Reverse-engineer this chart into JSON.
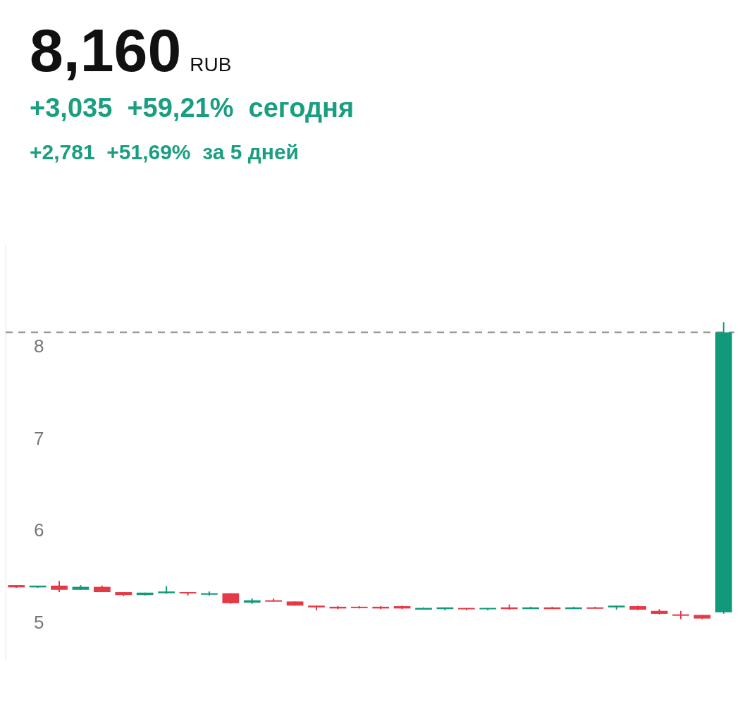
{
  "chart_data": {
    "type": "candlestick",
    "title": "8,160",
    "subtitle": "RUB",
    "annotations": [
      "+3,035  +59,21%  сегодня",
      "+2,781  +51,69%  за 5 дней"
    ],
    "categories": [
      null,
      null,
      null,
      null,
      null,
      null,
      null,
      null,
      null,
      null,
      null,
      null,
      null,
      null,
      null,
      null,
      null,
      null,
      null,
      null,
      null,
      null,
      null,
      null,
      null,
      null,
      null,
      null,
      null,
      null,
      null,
      null,
      null,
      null
    ],
    "ohlc": [
      [
        5.42,
        5.42,
        5.39,
        5.395
      ],
      [
        5.395,
        5.414,
        5.389,
        5.414
      ],
      [
        5.414,
        5.465,
        5.344,
        5.369
      ],
      [
        5.369,
        5.42,
        5.369,
        5.401
      ],
      [
        5.401,
        5.414,
        5.344,
        5.344
      ],
      [
        5.344,
        5.344,
        5.299,
        5.312
      ],
      [
        5.312,
        5.338,
        5.306,
        5.338
      ],
      [
        5.331,
        5.408,
        5.325,
        5.35
      ],
      [
        5.344,
        5.344,
        5.306,
        5.331
      ],
      [
        5.318,
        5.35,
        5.306,
        5.331
      ],
      [
        5.331,
        5.331,
        5.217,
        5.223
      ],
      [
        5.229,
        5.274,
        5.217,
        5.255
      ],
      [
        5.255,
        5.274,
        5.242,
        5.242
      ],
      [
        5.242,
        5.242,
        5.197,
        5.197
      ],
      [
        5.197,
        5.197,
        5.146,
        5.178
      ],
      [
        5.185,
        5.191,
        5.159,
        5.166
      ],
      [
        5.185,
        5.191,
        5.166,
        5.172
      ],
      [
        5.185,
        5.191,
        5.159,
        5.166
      ],
      [
        5.191,
        5.197,
        5.159,
        5.166
      ],
      [
        5.153,
        5.178,
        5.153,
        5.172
      ],
      [
        5.159,
        5.178,
        5.146,
        5.178
      ],
      [
        5.172,
        5.172,
        5.146,
        5.159
      ],
      [
        5.159,
        5.172,
        5.146,
        5.172
      ],
      [
        5.178,
        5.21,
        5.153,
        5.159
      ],
      [
        5.159,
        5.185,
        5.159,
        5.178
      ],
      [
        5.178,
        5.185,
        5.159,
        5.159
      ],
      [
        5.159,
        5.185,
        5.159,
        5.178
      ],
      [
        5.178,
        5.185,
        5.166,
        5.166
      ],
      [
        5.178,
        5.197,
        5.153,
        5.197
      ],
      [
        5.191,
        5.197,
        5.146,
        5.153
      ],
      [
        5.14,
        5.159,
        5.101,
        5.108
      ],
      [
        5.102,
        5.14,
        5.051,
        5.089
      ],
      [
        5.096,
        5.096,
        5.051,
        5.057
      ],
      [
        5.125,
        8.27,
        5.11,
        8.16
      ]
    ],
    "colors": [
      "#e63946",
      "#12997b",
      "#e63946",
      "#12997b",
      "#e63946",
      "#e63946",
      "#12997b",
      "#12997b",
      "#e63946",
      "#12997b",
      "#e63946",
      "#12997b",
      "#e63946",
      "#e63946",
      "#e63946",
      "#e63946",
      "#e63946",
      "#e63946",
      "#e63946",
      "#12997b",
      "#12997b",
      "#e63946",
      "#12997b",
      "#e63946",
      "#12997b",
      "#e63946",
      "#12997b",
      "#e63946",
      "#12997b",
      "#e63946",
      "#e63946",
      "#e63946",
      "#e63946",
      "#12997b"
    ],
    "ylim": [
      4.6,
      9.1
    ],
    "yticks": [
      5,
      6,
      7,
      8
    ],
    "ref_lines": [
      {
        "axis": "y",
        "value": 8.16,
        "color": "#8a8a8a",
        "line_style": "dashed"
      }
    ],
    "tick_labels": "y"
  }
}
